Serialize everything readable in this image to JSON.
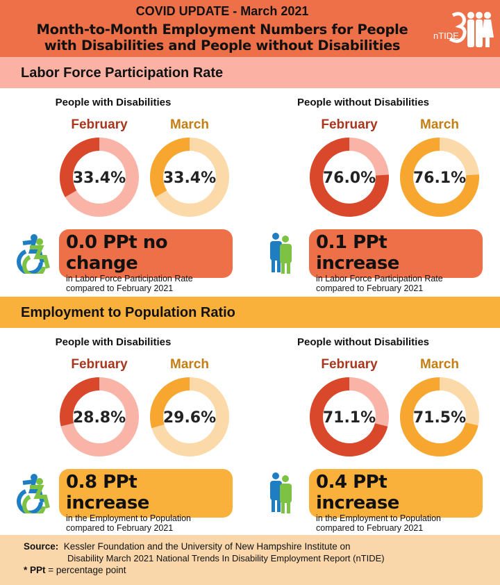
{
  "header": {
    "line1": "COVID UPDATE - March 2021",
    "line2": "Month-to-Month Employment Numbers for People",
    "line3": "with Disabilities and People without Disabilities",
    "logo_text": "nTIDE"
  },
  "colors": {
    "header": "#ee7048",
    "feb_dark": "#d9482b",
    "feb_light": "#f9b3a7",
    "mar_dark": "#f7a730",
    "mar_light": "#fbd9a8",
    "lfpr_band": "#fbb1a3",
    "epr_band": "#f9b13b",
    "source_bg": "#fad7aa"
  },
  "sections": [
    {
      "title": "Labor Force Participation Rate",
      "groups": [
        {
          "label": "People with Disabilities",
          "icon": "wheelchair-icon",
          "months": [
            {
              "name": "February",
              "label": "33.4%"
            },
            {
              "name": "March",
              "label": "33.4%"
            }
          ],
          "callout": {
            "headline": "0.0 PPt no change",
            "line1": "in Labor Force Participation Rate",
            "line2": "compared to February 2021"
          }
        },
        {
          "label": "People without Disabilities",
          "icon": "people-icon",
          "months": [
            {
              "name": "February",
              "label": "76.0%"
            },
            {
              "name": "March",
              "label": "76.1%"
            }
          ],
          "callout": {
            "headline": "0.1 PPt increase",
            "line1": "in Labor Force Participation Rate",
            "line2": "compared to February 2021"
          }
        }
      ]
    },
    {
      "title": "Employment to Population Ratio",
      "groups": [
        {
          "label": "People with Disabilities",
          "icon": "wheelchair-icon",
          "months": [
            {
              "name": "February",
              "label": "28.8%"
            },
            {
              "name": "March",
              "label": "29.6%"
            }
          ],
          "callout": {
            "headline": "0.8 PPt increase",
            "line1": "in the Employment to Population",
            "line2": "compared to February 2021"
          }
        },
        {
          "label": "People without Disabilities",
          "icon": "people-icon",
          "months": [
            {
              "name": "February",
              "label": "71.1%"
            },
            {
              "name": "March",
              "label": "71.5%"
            }
          ],
          "callout": {
            "headline": "0.4 PPt increase",
            "line1": "in the Employment to Population",
            "line2": "compared to February 2021"
          }
        }
      ]
    }
  ],
  "chart_data": [
    {
      "type": "pie",
      "title": "Labor Force Participation Rate",
      "group": "People with Disabilities",
      "categories": [
        "February",
        "March"
      ],
      "values": [
        33.4,
        33.4
      ]
    },
    {
      "type": "pie",
      "title": "Labor Force Participation Rate",
      "group": "People without Disabilities",
      "categories": [
        "February",
        "March"
      ],
      "values": [
        76.0,
        76.1
      ]
    },
    {
      "type": "pie",
      "title": "Employment to Population Ratio",
      "group": "People with Disabilities",
      "categories": [
        "February",
        "March"
      ],
      "values": [
        28.8,
        29.6
      ]
    },
    {
      "type": "pie",
      "title": "Employment to Population Ratio",
      "group": "People without Disabilities",
      "categories": [
        "February",
        "March"
      ],
      "values": [
        71.1,
        71.5
      ]
    }
  ],
  "source": {
    "label": "Source:",
    "line1": "Kessler Foundation and the University of New Hampshire Institute on",
    "line2": "Disability March 2021 National Trends In Disability Employment Report (nTIDE)",
    "note_key": "* PPt",
    "note_text": " = percentage point"
  }
}
